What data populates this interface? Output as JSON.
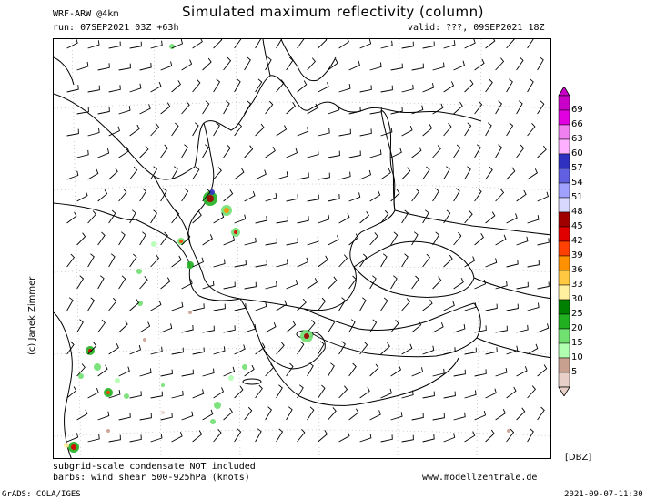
{
  "header": {
    "model": "WRF-ARW @4km",
    "title": "Simulated maximum reflectivity (column)",
    "run": "run: 07SEP2021 03Z +63h",
    "valid": "valid: ???, 09SEP2021 18Z"
  },
  "colorbar": {
    "unit": "[DBZ]",
    "levels": [
      "69",
      "66",
      "63",
      "60",
      "57",
      "54",
      "51",
      "48",
      "45",
      "42",
      "39",
      "36",
      "33",
      "30",
      "25",
      "20",
      "15",
      "10",
      "5"
    ],
    "colors": [
      "#c800c8",
      "#e000e0",
      "#f080f0",
      "#ffb0ff",
      "#3030c0",
      "#6060e0",
      "#a0a0ff",
      "#d8d8ff",
      "#a00000",
      "#e00000",
      "#ff4000",
      "#ff9000",
      "#ffc840",
      "#fff0a0",
      "#008000",
      "#20b020",
      "#70e070",
      "#b0ffb0",
      "#c8a090",
      "#e8d0c8"
    ]
  },
  "footer": {
    "note1": "subgrid-scale condensate NOT included",
    "note2": "barbs: wind shear 500-925hPa (knots)",
    "site": "www.modellzentrale.de",
    "grads": "GrADS: COLA/IGES",
    "timestamp": "2021-09-07-11:30"
  },
  "credit": "(c) Janek Zimmer"
}
